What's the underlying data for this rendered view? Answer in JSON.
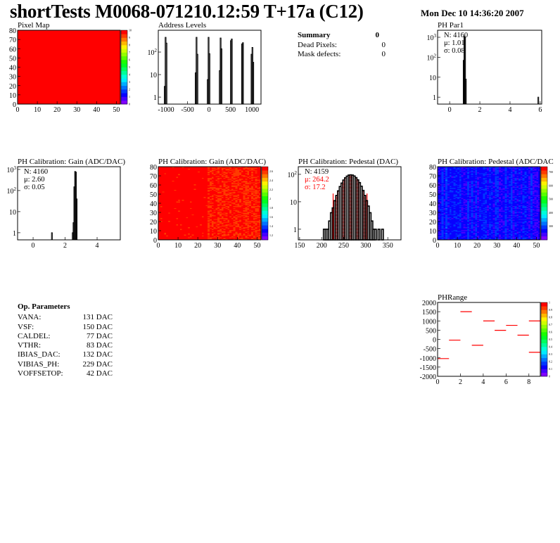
{
  "header": {
    "title": "shortTests M0068-071210.12:59 T+17a (C12)",
    "date": "Mon Dec 10 14:36:20 2007"
  },
  "panels": {
    "pixel_map": {
      "title": "Pixel Map"
    },
    "address_levels": {
      "title": "Address Levels"
    },
    "ph_par1": {
      "title": "PH Par1",
      "stats": {
        "n": "N: 4160",
        "mu": "μ: 1.01",
        "sigma": "σ: 0.08"
      }
    },
    "gain_hist": {
      "title": "PH Calibration: Gain (ADC/DAC)",
      "stats": {
        "n": "N: 4160",
        "mu": "μ: 2.60",
        "sigma": "σ: 0.05"
      }
    },
    "gain_map": {
      "title": "PH Calibration: Gain (ADC/DAC)"
    },
    "pedestal_hist": {
      "title": "PH Calibration: Pedestal (DAC)",
      "stats": {
        "n": "N: 4159",
        "mu": "μ: 264.2",
        "sigma": "σ: 17.2"
      }
    },
    "pedestal_map": {
      "title": "PH Calibration: Pedestal (ADC/DAC"
    },
    "ph_range": {
      "title": "PHRange"
    }
  },
  "summary": {
    "title": "Summary",
    "value": "0",
    "rows": [
      {
        "label": "Dead Pixels:",
        "value": "0"
      },
      {
        "label": "Mask defects:",
        "value": "0"
      }
    ]
  },
  "op_parameters": {
    "title": "Op. Parameters",
    "rows": [
      {
        "label": "VANA:",
        "value": "131 DAC"
      },
      {
        "label": "VSF:",
        "value": "150 DAC"
      },
      {
        "label": "CALDEL:",
        "value": "77 DAC"
      },
      {
        "label": "VTHR:",
        "value": "83 DAC"
      },
      {
        "label": "IBIAS_DAC:",
        "value": "132 DAC"
      },
      {
        "label": "VIBIAS_PH:",
        "value": "229 DAC"
      },
      {
        "label": "VOFFSETOP:",
        "value": "42 DAC"
      }
    ]
  },
  "colors": {
    "hist_line": "#000000",
    "fit": "#ff0000",
    "segment": "#ff0000"
  },
  "chart_data": [
    {
      "id": "pixel-map",
      "type": "heatmap",
      "title": "Pixel Map",
      "xlim": [
        0,
        52
      ],
      "ylim": [
        0,
        80
      ],
      "zlim": [
        0,
        10
      ],
      "uniform_value": 10,
      "xticks": [
        "0",
        "10",
        "20",
        "30",
        "40",
        "50"
      ],
      "yticks": [
        "0",
        "10",
        "20",
        "30",
        "40",
        "50",
        "60",
        "70",
        "80"
      ],
      "zticks": [
        "0",
        "1",
        "2",
        "3",
        "4",
        "5",
        "6",
        "7",
        "8",
        "9",
        "10"
      ]
    },
    {
      "id": "address-levels",
      "type": "bar",
      "title": "Address Levels",
      "xlim": [
        -1180,
        1210
      ],
      "ylim": [
        0.49,
        930
      ],
      "ylog": true,
      "bin_width": 20,
      "bins": [
        [
          -1040,
          3
        ],
        [
          -1020,
          450
        ],
        [
          -1000,
          250
        ],
        [
          -320,
          12
        ],
        [
          -300,
          450
        ],
        [
          -280,
          80
        ],
        [
          -40,
          6
        ],
        [
          -20,
          450
        ],
        [
          0,
          85
        ],
        [
          240,
          15
        ],
        [
          260,
          420
        ],
        [
          280,
          140
        ],
        [
          500,
          320
        ],
        [
          520,
          380
        ],
        [
          760,
          230
        ],
        [
          780,
          260
        ],
        [
          980,
          80
        ],
        [
          1000,
          160
        ],
        [
          1020,
          35
        ]
      ],
      "xticks": [
        "-1000",
        "-500",
        "0",
        "500",
        "1000"
      ],
      "yticks": [
        "1",
        "10",
        "10^2"
      ]
    },
    {
      "id": "ph-par1",
      "type": "bar",
      "title": "PH Par1",
      "xlim": [
        -0.8,
        6.1
      ],
      "ylim": [
        0.45,
        2250
      ],
      "ylog": true,
      "bin_width": 0.05,
      "bins": [
        [
          0.9,
          70
        ],
        [
          0.95,
          1100
        ],
        [
          1.0,
          1000
        ],
        [
          1.05,
          8
        ],
        [
          5.85,
          1
        ]
      ],
      "xticks": [
        "0",
        "2",
        "4",
        "6"
      ],
      "yticks": [
        "1",
        "10",
        "10^2",
        "10^3"
      ]
    },
    {
      "id": "gain-hist",
      "type": "bar",
      "title": "PH Calibration: Gain (ADC/DAC)",
      "xlim": [
        -0.97,
        5.45
      ],
      "ylim": [
        0.46,
        1350
      ],
      "ylog": true,
      "bin_width": 0.05,
      "bins": [
        [
          1.15,
          1
        ],
        [
          2.45,
          1
        ],
        [
          2.5,
          3
        ],
        [
          2.55,
          150
        ],
        [
          2.6,
          800
        ],
        [
          2.65,
          750
        ],
        [
          2.7,
          40
        ]
      ],
      "xticks": [
        "0",
        "2",
        "4"
      ],
      "yticks": [
        "1",
        "10",
        "10^2",
        "10^3"
      ]
    },
    {
      "id": "gain-map",
      "type": "heatmap",
      "title": "PH Calibration: Gain (ADC/DAC)",
      "xlim": [
        0,
        52
      ],
      "ylim": [
        0,
        80
      ],
      "zlim": [
        1.1,
        2.7
      ],
      "typical_value": 2.6,
      "xticks": [
        "0",
        "10",
        "20",
        "30",
        "40",
        "50"
      ],
      "yticks": [
        "0",
        "10",
        "20",
        "30",
        "40",
        "50",
        "60",
        "70",
        "80"
      ],
      "zticks": [
        "1.2",
        "1.4",
        "1.6",
        "1.8",
        "2",
        "2.2",
        "2.4",
        "2.6"
      ]
    },
    {
      "id": "pedestal-hist",
      "type": "bar",
      "title": "PH Calibration: Pedestal (DAC)",
      "xlim": [
        147,
        380
      ],
      "ylim": [
        0.41,
        190
      ],
      "ylog": true,
      "bin_width": 4,
      "fit_range": [
        226,
        303
      ],
      "bins": [
        [
          204,
          1
        ],
        [
          208,
          1
        ],
        [
          212,
          1
        ],
        [
          216,
          2
        ],
        [
          220,
          4
        ],
        [
          224,
          6
        ],
        [
          228,
          11
        ],
        [
          232,
          17
        ],
        [
          236,
          25
        ],
        [
          240,
          36
        ],
        [
          244,
          48
        ],
        [
          248,
          62
        ],
        [
          252,
          75
        ],
        [
          256,
          86
        ],
        [
          260,
          94
        ],
        [
          264,
          96
        ],
        [
          268,
          94
        ],
        [
          272,
          87
        ],
        [
          276,
          76
        ],
        [
          280,
          63
        ],
        [
          284,
          50
        ],
        [
          288,
          37
        ],
        [
          292,
          26
        ],
        [
          296,
          17
        ],
        [
          300,
          11
        ],
        [
          304,
          7
        ],
        [
          308,
          4
        ],
        [
          312,
          2
        ],
        [
          316,
          1
        ],
        [
          320,
          1
        ],
        [
          328,
          1
        ],
        [
          336,
          1
        ]
      ],
      "xticks": [
        "150",
        "200",
        "250",
        "300",
        "350"
      ],
      "yticks": [
        "1",
        "10",
        "10^2"
      ]
    },
    {
      "id": "pedestal-map",
      "type": "heatmap",
      "title": "PH Calibration: Pedestal (ADC/DAC",
      "xlim": [
        0,
        52
      ],
      "ylim": [
        0,
        80
      ],
      "zlim": [
        200,
        740
      ],
      "typical_value": 264,
      "xticks": [
        "0",
        "10",
        "20",
        "30",
        "40",
        "50"
      ],
      "yticks": [
        "0",
        "10",
        "20",
        "30",
        "40",
        "50",
        "60",
        "70",
        "80"
      ],
      "zticks": [
        "300",
        "400",
        "500",
        "600",
        "700"
      ]
    },
    {
      "id": "ph-range",
      "type": "segments",
      "title": "PHRange",
      "xlim": [
        0,
        9
      ],
      "ylim": [
        -2000,
        2000
      ],
      "zlim": [
        0,
        1
      ],
      "segments": [
        [
          0,
          1,
          -1040
        ],
        [
          1,
          2,
          -40
        ],
        [
          2,
          3,
          1500
        ],
        [
          3,
          4,
          -320
        ],
        [
          4,
          5,
          1000
        ],
        [
          5,
          6,
          490
        ],
        [
          6,
          7,
          760
        ],
        [
          7,
          8,
          230
        ],
        [
          8,
          9,
          1000
        ],
        [
          8,
          9,
          -700
        ]
      ],
      "xticks": [
        "0",
        "2",
        "4",
        "6",
        "8"
      ],
      "yticks": [
        "-2000",
        "-1500",
        "-1000",
        "-500",
        "0",
        "500",
        "1000",
        "1500",
        "2000"
      ],
      "zticks": [
        "0",
        "0.1",
        "0.2",
        "0.3",
        "0.4",
        "0.5",
        "0.6",
        "0.7",
        "0.8",
        "0.9",
        "1"
      ]
    }
  ]
}
